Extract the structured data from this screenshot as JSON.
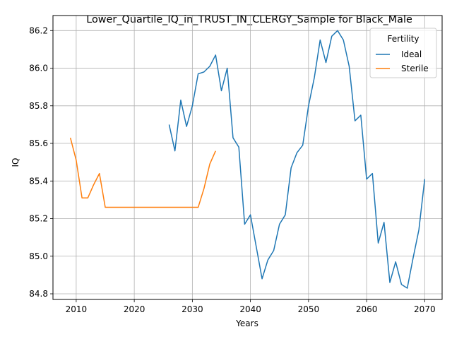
{
  "chart_data": {
    "type": "line",
    "title": "Lower_Quartile_IQ_in_TRUST_IN_CLERGY_Sample for Black_Male",
    "xlabel": "Years",
    "ylabel": "IQ",
    "xlim": [
      2006,
      2073
    ],
    "ylim": [
      84.77,
      86.28
    ],
    "xticks": [
      2010,
      2020,
      2030,
      2040,
      2050,
      2060,
      2070
    ],
    "yticks": [
      84.8,
      85.0,
      85.2,
      85.4,
      85.6,
      85.8,
      86.0,
      86.2
    ],
    "ytick_labels": [
      "84.8",
      "85.0",
      "85.2",
      "85.4",
      "85.6",
      "85.8",
      "86.0",
      "86.2"
    ],
    "grid": true,
    "legend": {
      "title": "Fertility",
      "placement": "top-right"
    },
    "series": [
      {
        "name": "Ideal",
        "color": "#1f77b4",
        "x": [
          2026,
          2027,
          2028,
          2029,
          2030,
          2031,
          2032,
          2033,
          2034,
          2035,
          2036,
          2037,
          2038,
          2039,
          2040,
          2041,
          2042,
          2043,
          2044,
          2045,
          2046,
          2047,
          2048,
          2049,
          2050,
          2051,
          2052,
          2053,
          2054,
          2055,
          2056,
          2057,
          2058,
          2059,
          2060,
          2061,
          2062,
          2063,
          2064,
          2065,
          2066,
          2067,
          2068,
          2069,
          2070
        ],
        "values": [
          85.7,
          85.56,
          85.83,
          85.69,
          85.8,
          85.97,
          85.98,
          86.01,
          86.07,
          85.88,
          86.0,
          85.63,
          85.58,
          85.17,
          85.22,
          85.05,
          84.88,
          84.98,
          85.03,
          85.17,
          85.22,
          85.47,
          85.55,
          85.59,
          85.8,
          85.95,
          86.15,
          86.03,
          86.17,
          86.2,
          86.15,
          86.01,
          85.72,
          85.75,
          85.41,
          85.44,
          85.07,
          85.18,
          84.86,
          84.97,
          84.85,
          84.83,
          84.99,
          85.14,
          85.41
        ]
      },
      {
        "name": "Sterile",
        "color": "#ff7f0e",
        "x": [
          2009,
          2010,
          2011,
          2012,
          2013,
          2014,
          2015,
          2016,
          2017,
          2018,
          2019,
          2020,
          2021,
          2022,
          2023,
          2024,
          2025,
          2026,
          2027,
          2028,
          2029,
          2030,
          2031,
          2032,
          2033,
          2034
        ],
        "values": [
          85.63,
          85.51,
          85.31,
          85.31,
          85.38,
          85.44,
          85.26,
          85.26,
          85.26,
          85.26,
          85.26,
          85.26,
          85.26,
          85.26,
          85.26,
          85.26,
          85.26,
          85.26,
          85.26,
          85.26,
          85.26,
          85.26,
          85.26,
          85.36,
          85.49,
          85.56
        ]
      }
    ]
  }
}
